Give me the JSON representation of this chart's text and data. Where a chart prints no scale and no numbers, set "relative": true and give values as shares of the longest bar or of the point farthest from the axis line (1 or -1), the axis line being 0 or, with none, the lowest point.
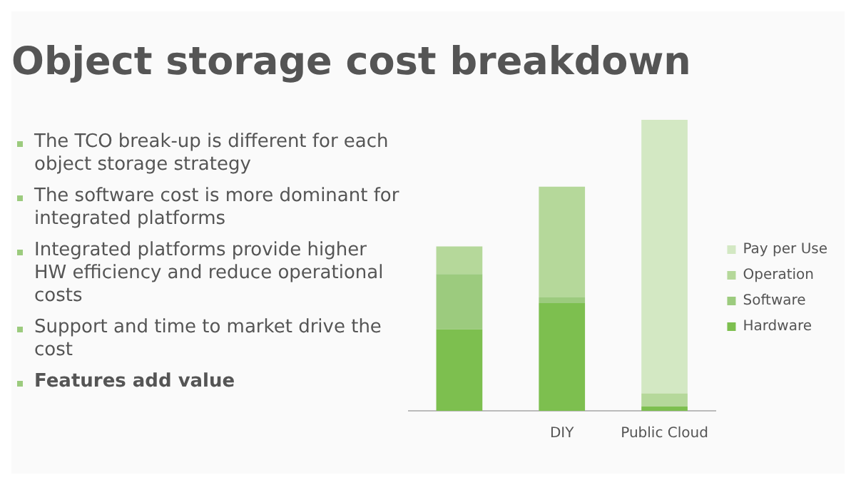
{
  "chart_data": {
    "type": "bar",
    "title": "Object storage cost breakdown",
    "relative": true,
    "stacked": true,
    "legend": "right",
    "grid": false,
    "annotations": [
      "The TCO break-up is different for each object storage strategy",
      "The software cost is more dominant for integrated platforms",
      "Integrated platforms provide higher HW efficiency and reduce operational costs",
      "Support and time to market drive the cost",
      "Features add value"
    ],
    "categories": [
      null,
      "DIY",
      "Public Cloud"
    ],
    "series": [
      {
        "name": "Hardware",
        "color": "#7dbf4f",
        "values": [
          0.28,
          0.37,
          0.015
        ]
      },
      {
        "name": "Software",
        "color": "#9ccb7e",
        "values": [
          0.19,
          0.02,
          0
        ]
      },
      {
        "name": "Operation",
        "color": "#b5d89a",
        "values": [
          0.095,
          0.38,
          0.045
        ]
      },
      {
        "name": "Pay per Use",
        "color": "#d3e8c3",
        "values": [
          0,
          0,
          0.94
        ]
      }
    ]
  }
}
